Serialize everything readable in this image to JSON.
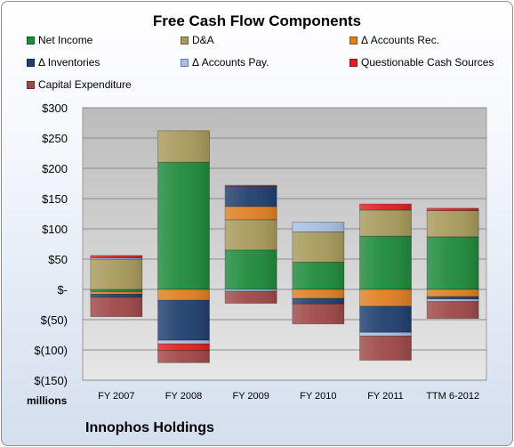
{
  "chart_data": {
    "type": "bar",
    "stacked": true,
    "title": "Free Cash Flow Components",
    "unit": "millions",
    "source": "Innophos Holdings",
    "categories": [
      "FY 2007",
      "FY 2008",
      "FY 2009",
      "FY 2010",
      "FY 2011",
      "TTM 6-2012"
    ],
    "ylim": [
      -150,
      300
    ],
    "yticks": [
      300,
      250,
      200,
      150,
      100,
      50,
      0,
      -50,
      -100,
      -150
    ],
    "ytick_labels": [
      "$300",
      "$250",
      "$200",
      "$150",
      "$100",
      "$50",
      "$-",
      "$(50)",
      "$(100)",
      "$(150)"
    ],
    "grid": true,
    "legend_position": "top",
    "series": [
      {
        "name": "Net Income",
        "color": "#1f8a3c",
        "values": [
          -4,
          210,
          65,
          45,
          88,
          87
        ]
      },
      {
        "name": "D&A",
        "color": "#a89a5c",
        "values": [
          50,
          52,
          50,
          50,
          43,
          43
        ]
      },
      {
        "name": "Δ Accounts Rec.",
        "color": "#e07f22",
        "values": [
          -4,
          -18,
          22,
          -15,
          -28,
          -12
        ]
      },
      {
        "name": "Δ Inventories",
        "color": "#1f3f6e",
        "values": [
          -5,
          -66,
          33,
          -9,
          -43,
          -4
        ]
      },
      {
        "name": "Δ Accounts Pay.",
        "color": "#a7c0e0",
        "values": [
          2,
          -6,
          -3,
          16,
          -6,
          -4
        ]
      },
      {
        "name": "Questionable Cash Sources",
        "color": "#e02020",
        "values": [
          4,
          -11,
          2,
          0,
          10,
          4
        ]
      },
      {
        "name": "Capital Expenditure",
        "color": "#a04848",
        "values": [
          -32,
          -20,
          -20,
          -33,
          -40,
          -28
        ]
      }
    ]
  }
}
